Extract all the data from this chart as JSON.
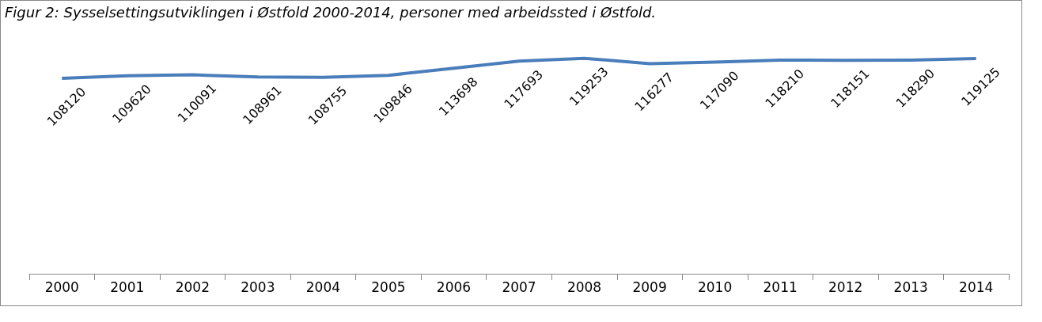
{
  "chart_data": {
    "type": "line",
    "title": "Figur 2: Sysselsettingsutviklingen i Østfold 2000-2014, personer med arbeidssted i Østfold.",
    "categories": [
      "2000",
      "2001",
      "2002",
      "2003",
      "2004",
      "2005",
      "2006",
      "2007",
      "2008",
      "2009",
      "2010",
      "2011",
      "2012",
      "2013",
      "2014"
    ],
    "series": [
      {
        "color": "#4a7ebb",
        "values": [
          108120,
          109620,
          110091,
          108961,
          108755,
          109846,
          113698,
          117693,
          119253,
          116277,
          117090,
          118210,
          118151,
          118290,
          119125
        ]
      }
    ],
    "data_labels": true,
    "marker": "none",
    "grid": false
  }
}
